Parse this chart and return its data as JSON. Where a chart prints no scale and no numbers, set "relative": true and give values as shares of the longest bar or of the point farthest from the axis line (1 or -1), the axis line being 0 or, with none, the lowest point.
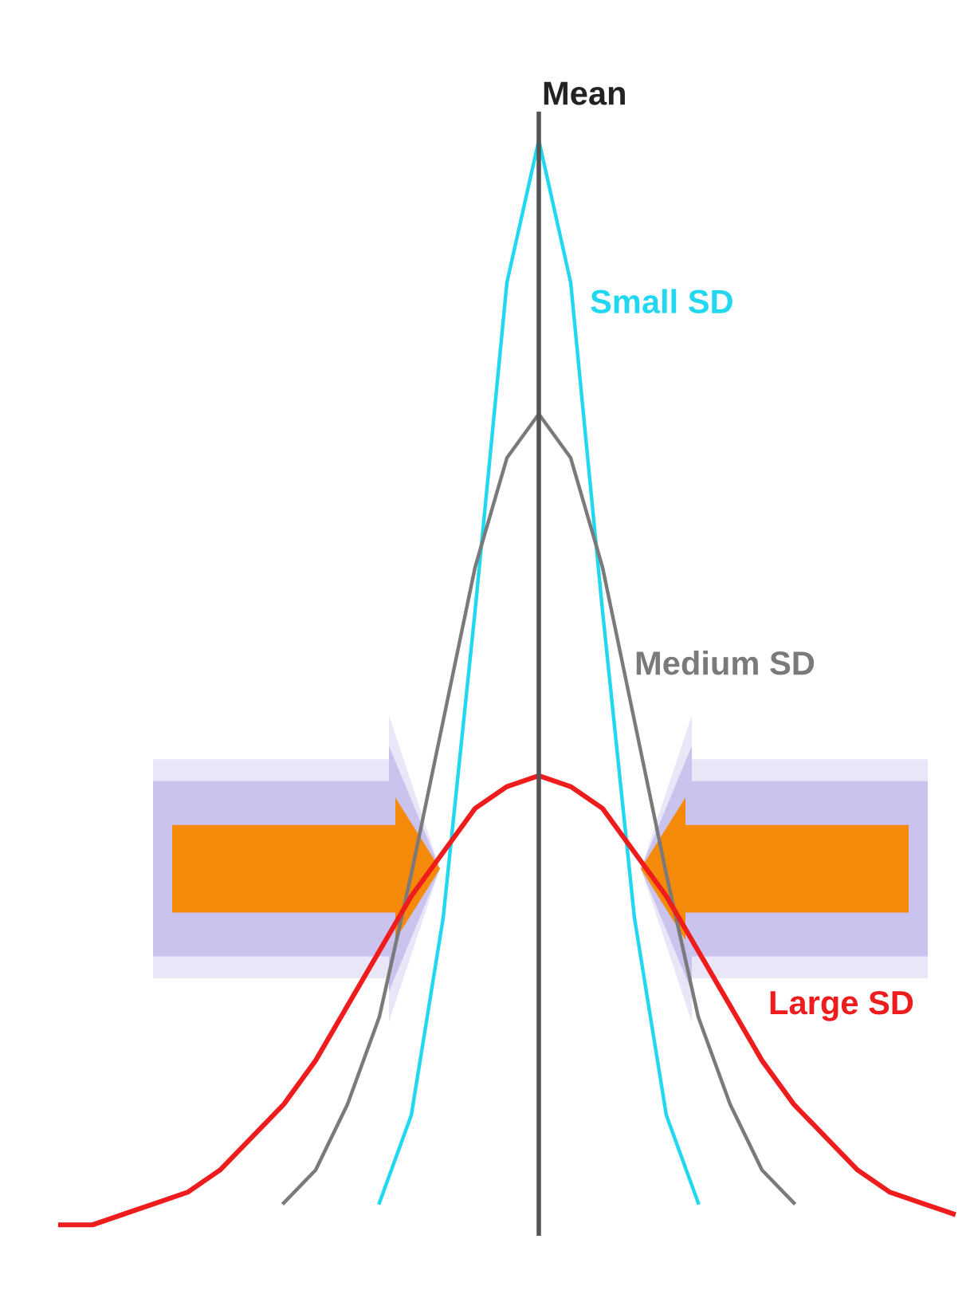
{
  "chart_data": {
    "type": "line",
    "relative": true,
    "legend": false,
    "marker": "none",
    "line_style": "solid",
    "categories": [
      null,
      null,
      null,
      null,
      null,
      null,
      null,
      null,
      null,
      null,
      null,
      null,
      null,
      null,
      null,
      null,
      null,
      null,
      null,
      null,
      null,
      null,
      null,
      null,
      null,
      null,
      null,
      null,
      null
    ],
    "series": [
      {
        "name": "Small SD",
        "color": "#22d8f0",
        "values": [
          null,
          null,
          null,
          null,
          null,
          null,
          null,
          null,
          null,
          null,
          0.03,
          0.11,
          0.29,
          0.57,
          0.87,
          1,
          0.87,
          0.57,
          0.29,
          0.11,
          0.03,
          null,
          null,
          null,
          null,
          null,
          null,
          null,
          null
        ]
      },
      {
        "name": "Medium SD",
        "color": "#7a7a7a",
        "values": [
          null,
          null,
          null,
          null,
          null,
          null,
          null,
          0.03,
          0.06,
          0.12,
          0.2,
          0.33,
          0.47,
          0.61,
          0.71,
          0.75,
          0.71,
          0.61,
          0.47,
          0.33,
          0.2,
          0.12,
          0.06,
          0.03,
          null,
          null,
          null,
          null,
          null
        ]
      },
      {
        "name": "Large SD",
        "color": "#ee1c1c",
        "values": [
          0.01,
          0.01,
          0.02,
          0.03,
          0.04,
          0.06,
          0.09,
          0.12,
          0.16,
          0.21,
          0.26,
          0.31,
          0.35,
          0.39,
          0.41,
          0.42,
          0.41,
          0.39,
          0.35,
          0.31,
          0.26,
          0.21,
          0.16,
          0.12,
          0.09,
          0.06,
          0.04,
          0.03,
          0.02
        ]
      }
    ],
    "annotations": [
      "Mean"
    ]
  }
}
